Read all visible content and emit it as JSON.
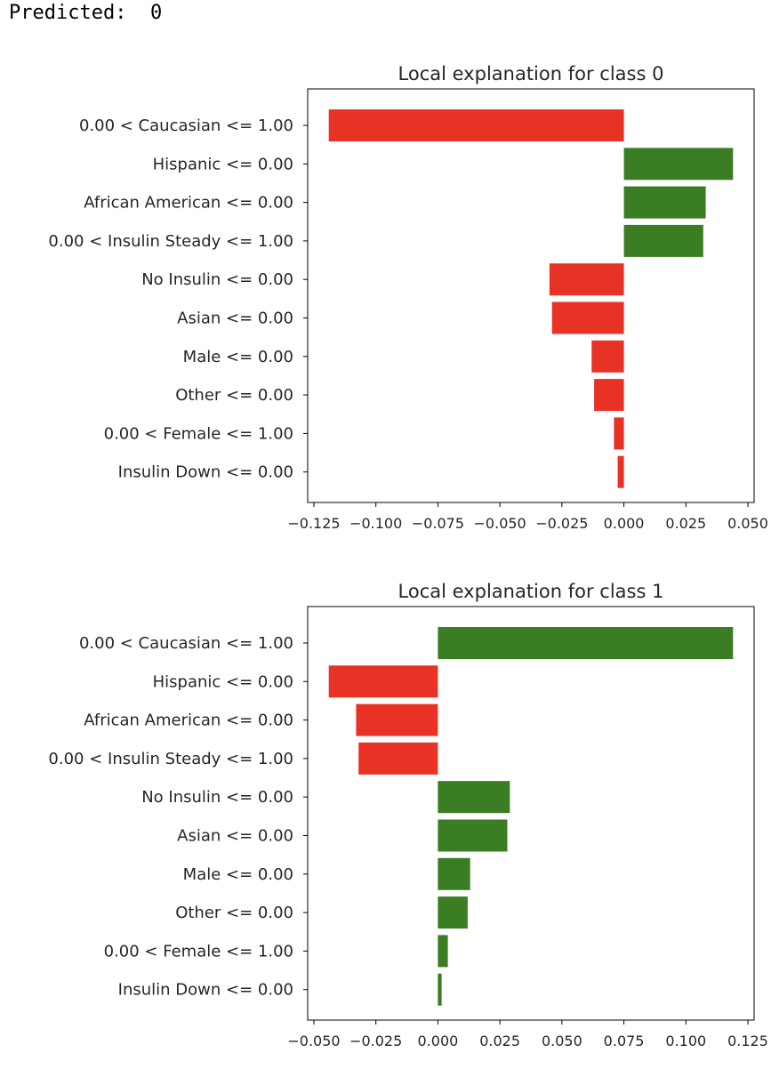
{
  "output": {
    "predicted_label": "Predicted:",
    "predicted_value": "0"
  },
  "colors": {
    "positive": "#3a7d22",
    "negative": "#e83226"
  },
  "chart_data": [
    {
      "type": "bar",
      "orientation": "horizontal",
      "title": "Local explanation for class 0",
      "categories": [
        "0.00 < Caucasian <= 1.00",
        "Hispanic <= 0.00",
        "African American <= 0.00",
        "0.00 < Insulin Steady <= 1.00",
        "No Insulin <= 0.00",
        "Asian <= 0.00",
        "Male <= 0.00",
        "Other <= 0.00",
        "0.00 < Female <= 1.00",
        "Insulin Down <= 0.00"
      ],
      "values": [
        -0.119,
        0.044,
        0.033,
        0.032,
        -0.03,
        -0.029,
        -0.013,
        -0.012,
        -0.004,
        -0.0025
      ],
      "xlim": [
        -0.1275,
        0.0525
      ],
      "xticks": [
        -0.125,
        -0.1,
        -0.075,
        -0.05,
        -0.025,
        0.0,
        0.025,
        0.05
      ],
      "xtick_labels": [
        "−0.125",
        "−0.100",
        "−0.075",
        "−0.050",
        "−0.025",
        "0.000",
        "0.025",
        "0.050"
      ]
    },
    {
      "type": "bar",
      "orientation": "horizontal",
      "title": "Local explanation for class 1",
      "categories": [
        "0.00 < Caucasian <= 1.00",
        "Hispanic <= 0.00",
        "African American <= 0.00",
        "0.00 < Insulin Steady <= 1.00",
        "No Insulin <= 0.00",
        "Asian <= 0.00",
        "Male <= 0.00",
        "Other <= 0.00",
        "0.00 < Female <= 1.00",
        "Insulin Down <= 0.00"
      ],
      "values": [
        0.119,
        -0.044,
        -0.033,
        -0.032,
        0.029,
        0.028,
        0.013,
        0.012,
        0.004,
        0.0015
      ],
      "xlim": [
        -0.0525,
        0.1275
      ],
      "xticks": [
        -0.05,
        -0.025,
        0.0,
        0.025,
        0.05,
        0.075,
        0.1,
        0.125
      ],
      "xtick_labels": [
        "−0.050",
        "−0.025",
        "0.000",
        "0.025",
        "0.050",
        "0.075",
        "0.100",
        "0.125"
      ]
    }
  ]
}
